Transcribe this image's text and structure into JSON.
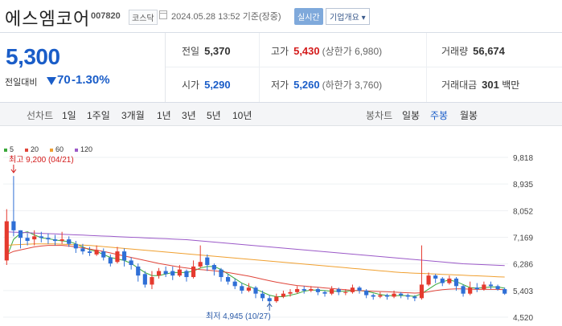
{
  "header": {
    "name": "에스엠코어",
    "code": "007820",
    "market": "코스닥",
    "datetime": "2024.05.28 13:52",
    "basis": "기준(장중)",
    "realtime": "실시간",
    "company_button": "기업개요 ▾"
  },
  "quote": {
    "price": "5,300",
    "change_label": "전일대비",
    "change": "70",
    "change_pct": "-1.30%",
    "prev_label": "전일",
    "prev": "5,370",
    "high_label": "고가",
    "high": "5,430",
    "upper_limit": "(상한가 6,980)",
    "volume_label": "거래량",
    "volume": "56,674",
    "open_label": "시가",
    "open": "5,290",
    "low_label": "저가",
    "low": "5,260",
    "lower_limit": "(하한가 3,760)",
    "amount_label": "거래대금",
    "amount": "301",
    "amount_unit": "백만"
  },
  "tabs": {
    "line_group": "선차트",
    "line": [
      "1일",
      "1주일",
      "3개월",
      "1년",
      "3년",
      "5년",
      "10년"
    ],
    "candle_group": "봉차트",
    "candle": [
      "일봉",
      "주봉",
      "월봉"
    ],
    "active_candle": "주봉"
  },
  "legend": [
    {
      "label": "5",
      "color": "#3aa83a"
    },
    {
      "label": "20",
      "color": "#e0453a"
    },
    {
      "label": "60",
      "color": "#f0a030"
    },
    {
      "label": "120",
      "color": "#9b59c8"
    }
  ],
  "colors": {
    "up": "#e53a2e",
    "down": "#2f6fd6",
    "accent": "#1a5dc8"
  },
  "chart_data": {
    "type": "candlestick",
    "yticks": [
      "9,818",
      "8,935",
      "8,052",
      "7,169",
      "6,286",
      "5,403",
      "4,520"
    ],
    "ylim": [
      4520,
      9818
    ],
    "annotations": {
      "high": "최고 9,200 (04/21)",
      "low": "최저 4,945 (10/27)"
    },
    "candles": [
      [
        6400,
        7700,
        8100,
        6250
      ],
      [
        7700,
        7400,
        9200,
        7200
      ],
      [
        7400,
        7150,
        7400,
        6800
      ],
      [
        7150,
        7050,
        7300,
        6900
      ],
      [
        7100,
        7200,
        7400,
        6900
      ],
      [
        7200,
        7150,
        7350,
        7000
      ],
      [
        7150,
        7100,
        7300,
        6950
      ],
      [
        7100,
        7050,
        7250,
        6900
      ],
      [
        7050,
        7100,
        7350,
        6950
      ],
      [
        7100,
        6950,
        7200,
        6850
      ],
      [
        6950,
        6800,
        7050,
        6650
      ],
      [
        6800,
        6700,
        6950,
        6600
      ],
      [
        6700,
        6650,
        6850,
        6550
      ],
      [
        6600,
        6750,
        6900,
        6550
      ],
      [
        6700,
        6500,
        6800,
        6400
      ],
      [
        6500,
        6300,
        6600,
        6200
      ],
      [
        6350,
        6700,
        6850,
        6300
      ],
      [
        6700,
        6400,
        6800,
        6200
      ],
      [
        6400,
        6250,
        6500,
        6100
      ],
      [
        6200,
        5900,
        6300,
        5700
      ],
      [
        5950,
        5600,
        6050,
        5500
      ],
      [
        5600,
        5850,
        6050,
        5450
      ],
      [
        5900,
        6050,
        6150,
        5800
      ],
      [
        6050,
        5950,
        6200,
        5850
      ],
      [
        6050,
        5900,
        6200,
        5750
      ],
      [
        5900,
        6100,
        6250,
        5850
      ],
      [
        6050,
        5850,
        6100,
        5700
      ],
      [
        5850,
        6200,
        6400,
        5800
      ],
      [
        6200,
        6350,
        6900,
        6150
      ],
      [
        6500,
        6250,
        6600,
        6050
      ],
      [
        6250,
        6100,
        6300,
        5900
      ],
      [
        6100,
        5850,
        6150,
        5700
      ],
      [
        5850,
        5700,
        5950,
        5600
      ],
      [
        5700,
        5550,
        5800,
        5450
      ],
      [
        5550,
        5400,
        5650,
        5300
      ],
      [
        5400,
        5500,
        5650,
        5350
      ],
      [
        5500,
        5300,
        5550,
        5150
      ],
      [
        5300,
        5150,
        5400,
        5050
      ],
      [
        5150,
        5050,
        5250,
        4945
      ],
      [
        5050,
        5200,
        5300,
        5000
      ],
      [
        5200,
        5300,
        5400,
        5150
      ],
      [
        5300,
        5350,
        5450,
        5200
      ],
      [
        5350,
        5450,
        5550,
        5300
      ],
      [
        5450,
        5400,
        5550,
        5300
      ],
      [
        5400,
        5450,
        5550,
        5350
      ],
      [
        5450,
        5350,
        5500,
        5250
      ],
      [
        5350,
        5300,
        5400,
        5200
      ],
      [
        5300,
        5450,
        5550,
        5250
      ],
      [
        5450,
        5350,
        5500,
        5250
      ],
      [
        5350,
        5350,
        5450,
        5250
      ],
      [
        5350,
        5500,
        5600,
        5300
      ],
      [
        5500,
        5400,
        5550,
        5300
      ],
      [
        5400,
        5250,
        5450,
        5150
      ],
      [
        5250,
        5200,
        5300,
        5100
      ],
      [
        5200,
        5250,
        5350,
        5150
      ],
      [
        5250,
        5200,
        5300,
        5100
      ],
      [
        5200,
        5300,
        5400,
        5150
      ],
      [
        5300,
        5250,
        5350,
        5150
      ],
      [
        5250,
        5200,
        5300,
        5100
      ],
      [
        5200,
        5150,
        5250,
        5050
      ],
      [
        5150,
        5600,
        6900,
        5100
      ],
      [
        5600,
        5900,
        6000,
        5550
      ],
      [
        5900,
        5800,
        5950,
        5650
      ],
      [
        5800,
        5650,
        5850,
        5550
      ],
      [
        5650,
        5800,
        5900,
        5600
      ],
      [
        5800,
        5550,
        5850,
        5400
      ],
      [
        5550,
        5300,
        5600,
        5200
      ],
      [
        5300,
        5500,
        5700,
        5250
      ],
      [
        5500,
        5450,
        5650,
        5350
      ],
      [
        5450,
        5600,
        5700,
        5400
      ],
      [
        5600,
        5550,
        5700,
        5450
      ],
      [
        5550,
        5450,
        5600,
        5400
      ],
      [
        5450,
        5300,
        5500,
        5260
      ]
    ],
    "ma": {
      "5": [
        6500,
        7100,
        7300,
        7350,
        7250,
        7150,
        7120,
        7080,
        7050,
        7030,
        6950,
        6850,
        6750,
        6700,
        6600,
        6500,
        6450,
        6400,
        6300,
        6150,
        6000,
        5900,
        5900,
        5950,
        6000,
        6000,
        6000,
        6050,
        6150,
        6200,
        6200,
        6100,
        5950,
        5800,
        5650,
        5550,
        5450,
        5350,
        5250,
        5200,
        5200,
        5250,
        5300,
        5380,
        5420,
        5420,
        5400,
        5380,
        5380,
        5380,
        5400,
        5400,
        5380,
        5330,
        5270,
        5240,
        5230,
        5240,
        5230,
        5210,
        5300,
        5450,
        5600,
        5700,
        5750,
        5700,
        5600,
        5500,
        5480,
        5500,
        5520,
        5520,
        5480
      ],
      "20": [
        6600,
        6700,
        6750,
        6800,
        6850,
        6880,
        6900,
        6900,
        6900,
        6880,
        6850,
        6820,
        6780,
        6740,
        6700,
        6650,
        6600,
        6550,
        6500,
        6450,
        6400,
        6350,
        6300,
        6260,
        6220,
        6180,
        6150,
        6120,
        6100,
        6080,
        6060,
        6030,
        6000,
        5960,
        5920,
        5880,
        5830,
        5780,
        5730,
        5680,
        5640,
        5600,
        5570,
        5550,
        5530,
        5510,
        5490,
        5470,
        5450,
        5430,
        5410,
        5400,
        5390,
        5380,
        5370,
        5360,
        5350,
        5340,
        5330,
        5320,
        5330,
        5360,
        5400,
        5430,
        5450,
        5460,
        5460,
        5450,
        5440,
        5440,
        5440,
        5440,
        5430
      ],
      "60": [
        6900,
        6920,
        6930,
        6940,
        6950,
        6950,
        6950,
        6950,
        6940,
        6930,
        6920,
        6910,
        6900,
        6880,
        6860,
        6840,
        6820,
        6800,
        6780,
        6760,
        6740,
        6720,
        6700,
        6680,
        6660,
        6640,
        6620,
        6600,
        6580,
        6560,
        6540,
        6520,
        6500,
        6480,
        6460,
        6440,
        6420,
        6400,
        6380,
        6360,
        6340,
        6320,
        6300,
        6280,
        6260,
        6240,
        6220,
        6200,
        6180,
        6160,
        6140,
        6120,
        6100,
        6080,
        6060,
        6040,
        6020,
        6000,
        5990,
        5980,
        5970,
        5960,
        5950,
        5940,
        5930,
        5920,
        5910,
        5900,
        5890,
        5880,
        5870,
        5860,
        5850
      ],
      "120": [
        7350,
        7340,
        7330,
        7320,
        7310,
        7300,
        7290,
        7280,
        7270,
        7260,
        7250,
        7240,
        7230,
        7220,
        7210,
        7200,
        7190,
        7180,
        7170,
        7160,
        7150,
        7140,
        7130,
        7120,
        7110,
        7100,
        7090,
        7070,
        7050,
        7030,
        7010,
        6990,
        6970,
        6950,
        6930,
        6910,
        6890,
        6870,
        6850,
        6830,
        6810,
        6790,
        6770,
        6750,
        6730,
        6710,
        6690,
        6670,
        6650,
        6630,
        6610,
        6590,
        6570,
        6550,
        6530,
        6510,
        6490,
        6470,
        6450,
        6430,
        6410,
        6390,
        6370,
        6350,
        6330,
        6310,
        6290,
        6280,
        6270,
        6260,
        6250,
        6240,
        6230
      ]
    }
  }
}
